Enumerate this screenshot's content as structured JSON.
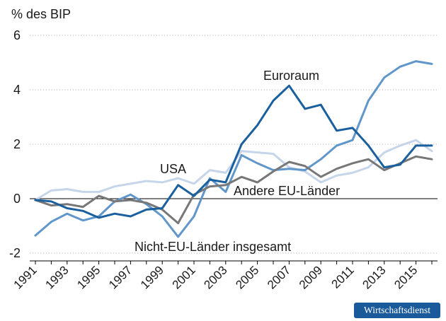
{
  "chart_data": {
    "type": "line",
    "title": "",
    "ylabel": "% des BIP",
    "xlabel": "",
    "ylim": [
      -2,
      6
    ],
    "yticks": [
      -2,
      0,
      2,
      4,
      6
    ],
    "ytick_labels": [
      "-2",
      "0",
      "2",
      "4",
      "6"
    ],
    "xlim": [
      1991,
      2016
    ],
    "x": [
      1991,
      1992,
      1993,
      1994,
      1995,
      1996,
      1997,
      1998,
      1999,
      2000,
      2001,
      2002,
      2003,
      2004,
      2005,
      2006,
      2007,
      2008,
      2009,
      2010,
      2011,
      2012,
      2013,
      2014,
      2015,
      2016
    ],
    "xticks": [
      1991,
      1993,
      1995,
      1997,
      1999,
      2001,
      2003,
      2005,
      2007,
      2009,
      2011,
      2013,
      2015
    ],
    "xtick_labels": [
      "1991",
      "1993",
      "1995",
      "1997",
      "1999",
      "2001",
      "2003",
      "2005",
      "2007",
      "2009",
      "2011",
      "2013",
      "2015"
    ],
    "grid": true,
    "series": [
      {
        "name": "USA",
        "color": "#c6d5ea",
        "values": [
          -0.05,
          0.3,
          0.35,
          0.25,
          0.25,
          0.45,
          0.55,
          0.65,
          0.6,
          0.75,
          0.55,
          1.05,
          0.95,
          1.75,
          1.7,
          1.65,
          1.15,
          1.0,
          0.6,
          0.85,
          0.95,
          1.15,
          1.7,
          1.95,
          2.15,
          1.75
        ]
      },
      {
        "name": "Nicht-EU-Länder insgesamt",
        "color": "#6196cb",
        "values": [
          -1.35,
          -0.85,
          -0.55,
          -0.8,
          -0.65,
          -0.1,
          0.15,
          -0.2,
          -0.65,
          -1.4,
          -0.65,
          0.75,
          0.25,
          1.6,
          1.3,
          1.05,
          1.1,
          1.05,
          1.45,
          1.95,
          2.15,
          3.6,
          4.45,
          4.85,
          5.05,
          4.95
        ]
      },
      {
        "name": "Andere EU-Länder",
        "color": "#777777",
        "values": [
          -0.05,
          -0.25,
          -0.2,
          -0.3,
          0.1,
          -0.1,
          -0.05,
          -0.15,
          -0.4,
          -0.9,
          0.15,
          0.45,
          0.5,
          0.8,
          0.6,
          1.0,
          1.35,
          1.2,
          0.8,
          1.1,
          1.3,
          1.45,
          1.05,
          1.3,
          1.55,
          1.45
        ]
      },
      {
        "name": "Euroraum",
        "color": "#1a5f9e",
        "values": [
          -0.05,
          -0.1,
          -0.35,
          -0.45,
          -0.7,
          -0.55,
          -0.65,
          -0.4,
          -0.35,
          0.5,
          0.1,
          0.7,
          0.6,
          2.0,
          2.7,
          3.6,
          4.15,
          3.3,
          3.45,
          2.5,
          2.6,
          1.95,
          1.15,
          1.25,
          1.95,
          1.95
        ]
      }
    ],
    "annotations": [
      {
        "text": "Euroraum",
        "series": "Euroraum"
      },
      {
        "text": "USA",
        "series": "USA"
      },
      {
        "text": "Andere EU-Länder",
        "series": "Andere EU-Länder"
      },
      {
        "text": "Nicht-EU-Länder insgesamt",
        "series": "Nicht-EU-Länder insgesamt"
      }
    ]
  },
  "brand": {
    "label": "Wirtschaftsdienst",
    "color": "#1a5a9a"
  }
}
